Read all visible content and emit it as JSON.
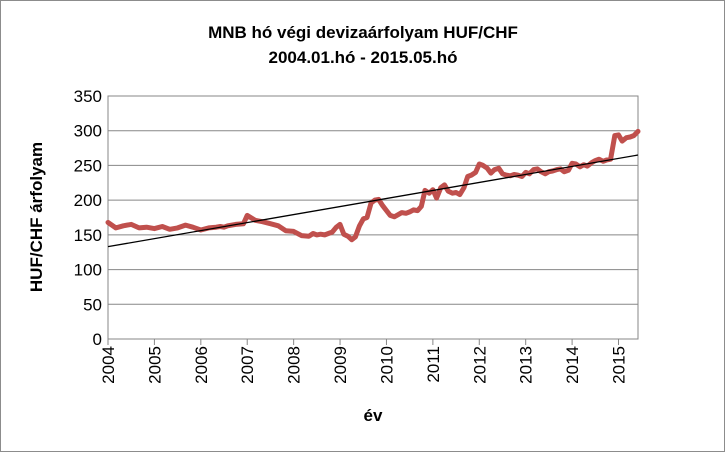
{
  "chart_data": {
    "type": "line",
    "title": "MNB hó végi devizaárfolyam HUF/CHF",
    "subtitle": "2004.01.hó - 2015.05.hó",
    "xlabel": "év",
    "ylabel": "HUF/CHF árfolyam",
    "xlim": [
      2004.0,
      2015.42
    ],
    "ylim": [
      0,
      350
    ],
    "x_ticks": [
      "2004",
      "2005",
      "2006",
      "2007",
      "2008",
      "2009",
      "2010",
      "2011",
      "2012",
      "2013",
      "2014",
      "2015"
    ],
    "y_ticks": [
      "0",
      "50",
      "100",
      "150",
      "200",
      "250",
      "300",
      "350"
    ],
    "grid": true,
    "legend": "none",
    "series": [
      {
        "color": "#c0504d",
        "x": [
          2004.0,
          2004.17,
          2004.33,
          2004.5,
          2004.67,
          2004.83,
          2005.0,
          2005.17,
          2005.33,
          2005.5,
          2005.67,
          2005.83,
          2006.0,
          2006.17,
          2006.33,
          2006.42,
          2006.5,
          2006.58,
          2006.75,
          2006.92,
          2007.0,
          2007.17,
          2007.33,
          2007.5,
          2007.67,
          2007.83,
          2008.0,
          2008.17,
          2008.33,
          2008.42,
          2008.5,
          2008.58,
          2008.67,
          2008.75,
          2008.83,
          2008.92,
          2009.0,
          2009.08,
          2009.17,
          2009.25,
          2009.33,
          2009.42,
          2009.5,
          2009.58,
          2009.67,
          2009.75,
          2009.83,
          2009.92,
          2010.0,
          2010.08,
          2010.17,
          2010.25,
          2010.33,
          2010.42,
          2010.5,
          2010.58,
          2010.67,
          2010.75,
          2010.83,
          2010.92,
          2011.0,
          2011.08,
          2011.17,
          2011.25,
          2011.33,
          2011.42,
          2011.5,
          2011.58,
          2011.67,
          2011.75,
          2011.83,
          2011.92,
          2012.0,
          2012.08,
          2012.17,
          2012.25,
          2012.33,
          2012.42,
          2012.5,
          2012.58,
          2012.67,
          2012.75,
          2012.83,
          2012.92,
          2013.0,
          2013.08,
          2013.17,
          2013.25,
          2013.33,
          2013.42,
          2013.5,
          2013.58,
          2013.67,
          2013.75,
          2013.83,
          2013.92,
          2014.0,
          2014.08,
          2014.17,
          2014.25,
          2014.33,
          2014.42,
          2014.5,
          2014.58,
          2014.67,
          2014.75,
          2014.83,
          2014.92,
          2015.0,
          2015.08,
          2015.17,
          2015.25,
          2015.33,
          2015.42
        ],
        "values": [
          168,
          160,
          163,
          165,
          160,
          161,
          159,
          162,
          158,
          160,
          164,
          161,
          157,
          160,
          161,
          162,
          161,
          163,
          165,
          166,
          178,
          171,
          169,
          166,
          163,
          156,
          155,
          149,
          148,
          152,
          150,
          151,
          150,
          152,
          154,
          161,
          165,
          151,
          148,
          143,
          147,
          163,
          173,
          175,
          196,
          200,
          201,
          192,
          185,
          178,
          176,
          179,
          182,
          181,
          183,
          186,
          185,
          191,
          214,
          210,
          215,
          203,
          218,
          222,
          213,
          210,
          211,
          208,
          218,
          234,
          236,
          240,
          252,
          250,
          246,
          239,
          244,
          246,
          238,
          236,
          235,
          237,
          236,
          234,
          240,
          238,
          244,
          245,
          241,
          238,
          241,
          242,
          244,
          245,
          241,
          243,
          253,
          252,
          248,
          251,
          249,
          254,
          257,
          259,
          256,
          258,
          259,
          293,
          294,
          285,
          290,
          291,
          293,
          299
        ]
      }
    ],
    "trendline": {
      "color": "#000000",
      "x": [
        2004.0,
        2015.42
      ],
      "values": [
        133,
        265
      ]
    }
  }
}
